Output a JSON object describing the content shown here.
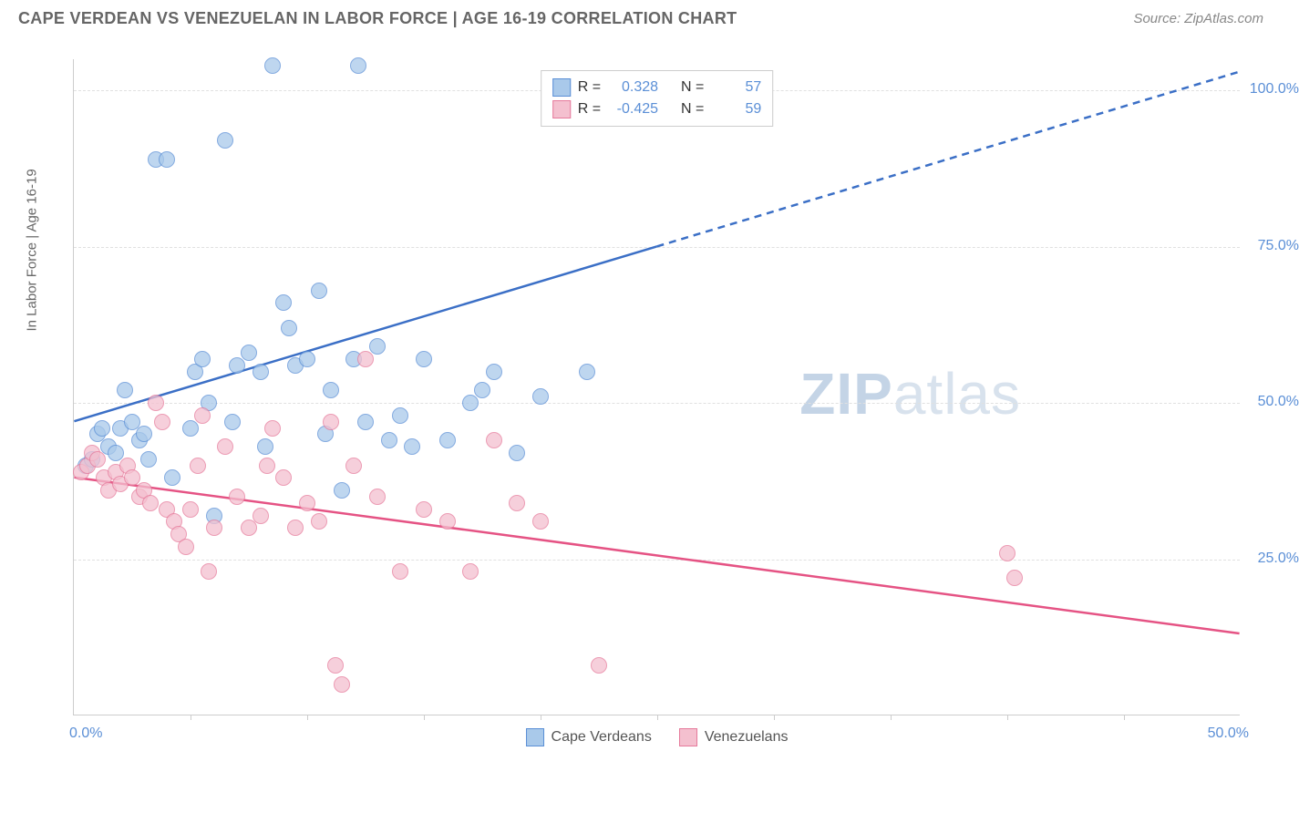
{
  "header": {
    "title": "CAPE VERDEAN VS VENEZUELAN IN LABOR FORCE | AGE 16-19 CORRELATION CHART",
    "source": "Source: ZipAtlas.com"
  },
  "chart": {
    "type": "scatter",
    "ylabel": "In Labor Force | Age 16-19",
    "xlim": [
      0,
      50
    ],
    "ylim": [
      0,
      105
    ],
    "yticks": [
      25,
      50,
      75,
      100
    ],
    "ytick_labels": [
      "25.0%",
      "50.0%",
      "75.0%",
      "100.0%"
    ],
    "xtick_labels": {
      "left": "0.0%",
      "right": "50.0%"
    },
    "xtick_positions": [
      5,
      10,
      15,
      20,
      25,
      30,
      35,
      40,
      45
    ],
    "background_color": "#ffffff",
    "grid_color": "#e0e0e0",
    "marker_radius": 9,
    "watermark": {
      "bold": "ZIP",
      "light": "atlas"
    },
    "series": [
      {
        "name": "Cape Verdeans",
        "fill": "#a9c9ea",
        "stroke": "#5b8fd6",
        "r": 0.328,
        "n": 57,
        "trend": {
          "x1": 0,
          "y1": 47,
          "x2_solid": 25,
          "y2_solid": 75,
          "x2": 50,
          "y2": 103,
          "color": "#3b6fc6",
          "width": 2.5
        },
        "points": [
          [
            0.5,
            40
          ],
          [
            0.8,
            41
          ],
          [
            1.0,
            45
          ],
          [
            1.2,
            46
          ],
          [
            1.5,
            43
          ],
          [
            1.8,
            42
          ],
          [
            2.0,
            46
          ],
          [
            2.2,
            52
          ],
          [
            2.5,
            47
          ],
          [
            2.8,
            44
          ],
          [
            3.0,
            45
          ],
          [
            3.2,
            41
          ],
          [
            3.5,
            89
          ],
          [
            4.0,
            89
          ],
          [
            4.2,
            38
          ],
          [
            5.0,
            46
          ],
          [
            5.2,
            55
          ],
          [
            5.5,
            57
          ],
          [
            5.8,
            50
          ],
          [
            6.0,
            32
          ],
          [
            6.5,
            92
          ],
          [
            6.8,
            47
          ],
          [
            7.0,
            56
          ],
          [
            7.5,
            58
          ],
          [
            8.0,
            55
          ],
          [
            8.2,
            43
          ],
          [
            8.5,
            104
          ],
          [
            9.0,
            66
          ],
          [
            9.2,
            62
          ],
          [
            9.5,
            56
          ],
          [
            10.0,
            57
          ],
          [
            10.5,
            68
          ],
          [
            10.8,
            45
          ],
          [
            11.0,
            52
          ],
          [
            11.5,
            36
          ],
          [
            12.0,
            57
          ],
          [
            12.2,
            104
          ],
          [
            12.5,
            47
          ],
          [
            13.0,
            59
          ],
          [
            13.5,
            44
          ],
          [
            14.0,
            48
          ],
          [
            14.5,
            43
          ],
          [
            15.0,
            57
          ],
          [
            16.0,
            44
          ],
          [
            17.0,
            50
          ],
          [
            17.5,
            52
          ],
          [
            18.0,
            55
          ],
          [
            19.0,
            42
          ],
          [
            20.0,
            51
          ],
          [
            22.0,
            55
          ]
        ]
      },
      {
        "name": "Venezuelans",
        "fill": "#f4c0cf",
        "stroke": "#e67a9b",
        "r": -0.425,
        "n": 59,
        "trend": {
          "x1": 0,
          "y1": 38,
          "x2_solid": 50,
          "y2_solid": 13,
          "x2": 50,
          "y2": 13,
          "color": "#e55384",
          "width": 2.5
        },
        "points": [
          [
            0.3,
            39
          ],
          [
            0.6,
            40
          ],
          [
            0.8,
            42
          ],
          [
            1.0,
            41
          ],
          [
            1.3,
            38
          ],
          [
            1.5,
            36
          ],
          [
            1.8,
            39
          ],
          [
            2.0,
            37
          ],
          [
            2.3,
            40
          ],
          [
            2.5,
            38
          ],
          [
            2.8,
            35
          ],
          [
            3.0,
            36
          ],
          [
            3.3,
            34
          ],
          [
            3.5,
            50
          ],
          [
            3.8,
            47
          ],
          [
            4.0,
            33
          ],
          [
            4.3,
            31
          ],
          [
            4.5,
            29
          ],
          [
            4.8,
            27
          ],
          [
            5.0,
            33
          ],
          [
            5.3,
            40
          ],
          [
            5.5,
            48
          ],
          [
            5.8,
            23
          ],
          [
            6.0,
            30
          ],
          [
            6.5,
            43
          ],
          [
            7.0,
            35
          ],
          [
            7.5,
            30
          ],
          [
            8.0,
            32
          ],
          [
            8.3,
            40
          ],
          [
            8.5,
            46
          ],
          [
            9.0,
            38
          ],
          [
            9.5,
            30
          ],
          [
            10.0,
            34
          ],
          [
            10.5,
            31
          ],
          [
            11.0,
            47
          ],
          [
            11.2,
            8
          ],
          [
            11.5,
            5
          ],
          [
            12.0,
            40
          ],
          [
            12.5,
            57
          ],
          [
            13.0,
            35
          ],
          [
            14.0,
            23
          ],
          [
            15.0,
            33
          ],
          [
            16.0,
            31
          ],
          [
            17.0,
            23
          ],
          [
            18.0,
            44
          ],
          [
            19.0,
            34
          ],
          [
            20.0,
            31
          ],
          [
            22.5,
            8
          ],
          [
            40.0,
            26
          ],
          [
            40.3,
            22
          ]
        ]
      }
    ],
    "stats_legend": {
      "r_label": "R = ",
      "n_label": "N = "
    },
    "series_legend_labels": [
      "Cape Verdeans",
      "Venezuelans"
    ]
  }
}
